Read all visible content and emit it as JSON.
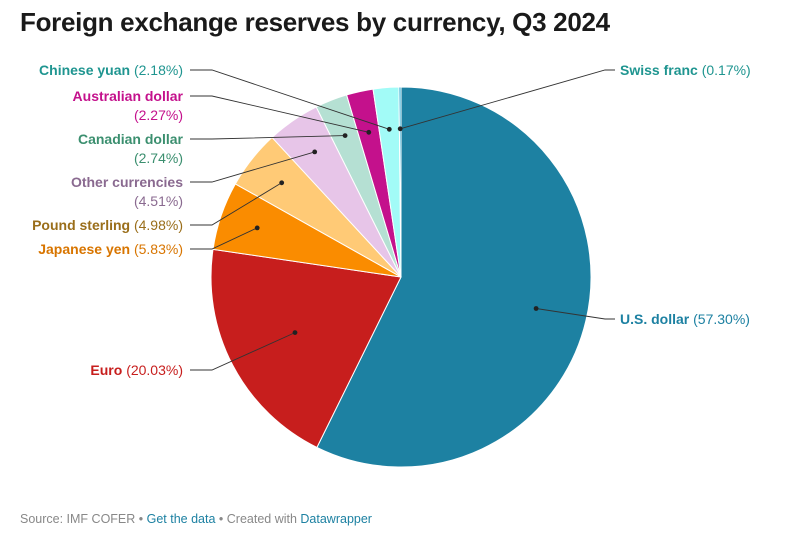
{
  "chart_data": {
    "type": "pie",
    "title": "Foreign exchange reserves by currency, Q3 2024",
    "slices": [
      {
        "name": "U.S. dollar",
        "value": 57.3,
        "pct_label": "(57.30%)",
        "color": "#1d81a2",
        "text_color": "#1d81a2"
      },
      {
        "name": "Euro",
        "value": 20.03,
        "pct_label": "(20.03%)",
        "color": "#c71e1d",
        "text_color": "#c71e1d"
      },
      {
        "name": "Japanese yen",
        "value": 5.83,
        "pct_label": "(5.83%)",
        "color": "#fa8c00",
        "text_color": "#d87500"
      },
      {
        "name": "Pound sterling",
        "value": 4.98,
        "pct_label": "(4.98%)",
        "color": "#ffca76",
        "text_color": "#9a6e1a"
      },
      {
        "name": "Other currencies",
        "value": 4.51,
        "pct_label": "(4.51%)",
        "color": "#e7c5e8",
        "text_color": "#8a6a90"
      },
      {
        "name": "Canadian dollar",
        "value": 2.74,
        "pct_label": "(2.74%)",
        "color": "#b5e0d3",
        "text_color": "#3b8f6f"
      },
      {
        "name": "Australian dollar",
        "value": 2.27,
        "pct_label": "(2.27%)",
        "color": "#c4118c",
        "text_color": "#c4118c"
      },
      {
        "name": "Chinese yuan",
        "value": 2.18,
        "pct_label": "(2.18%)",
        "color": "#a2fbf7",
        "text_color": "#1f9590"
      },
      {
        "name": "Swiss franc",
        "value": 0.17,
        "pct_label": "(0.17%)",
        "color": "#18a1cd",
        "text_color": "#1f9590"
      }
    ]
  },
  "footer": {
    "source": "Source: IMF COFER",
    "sep1": " • ",
    "get_data": "Get the data",
    "sep2": " • Created with ",
    "tool": "Datawrapper"
  }
}
